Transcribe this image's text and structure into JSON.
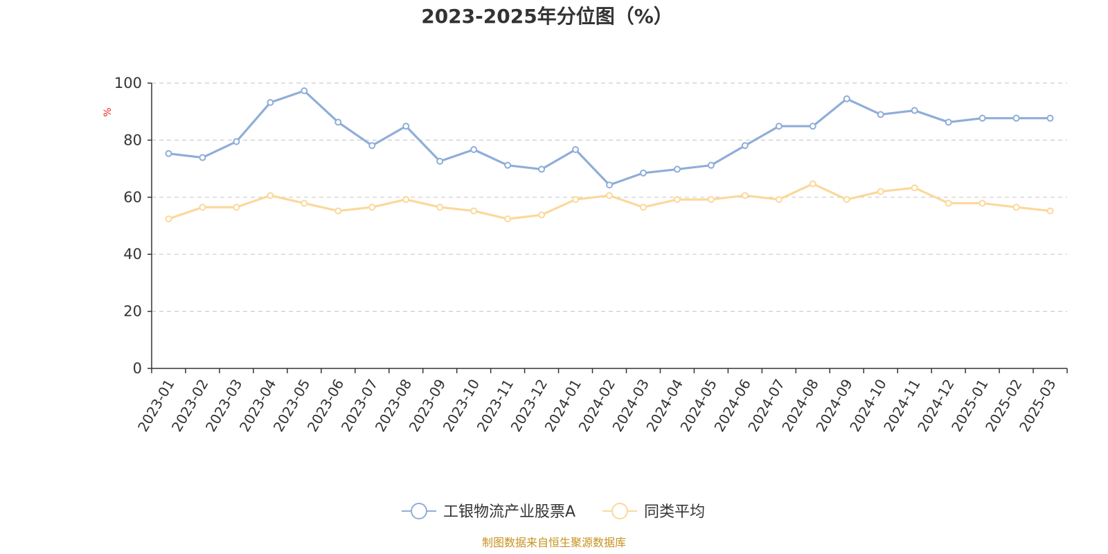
{
  "chart_data": {
    "type": "line",
    "title": "2023-2025年分位图（%）",
    "ylabel": "%",
    "xlabel": "",
    "ylim": [
      0,
      100
    ],
    "yticks": [
      0,
      20,
      40,
      60,
      80,
      100
    ],
    "grid": "horizontal-dashed",
    "legend_position": "bottom-center",
    "categories": [
      "2023-01",
      "2023-02",
      "2023-03",
      "2023-04",
      "2023-05",
      "2023-06",
      "2023-07",
      "2023-08",
      "2023-09",
      "2023-10",
      "2023-11",
      "2023-12",
      "2024-01",
      "2024-02",
      "2024-03",
      "2024-04",
      "2024-05",
      "2024-06",
      "2024-07",
      "2024-08",
      "2024-09",
      "2024-10",
      "2024-11",
      "2024-12",
      "2025-01",
      "2025-02",
      "2025-03"
    ],
    "series": [
      {
        "name": "工银物流产业股票A",
        "color": "#8fadd9",
        "values": [
          75.3,
          73.9,
          79.5,
          93.2,
          97.3,
          86.3,
          78.1,
          84.9,
          72.6,
          76.7,
          71.2,
          69.8,
          76.7,
          64.3,
          68.5,
          69.8,
          71.2,
          78.1,
          84.9,
          84.9,
          94.5,
          89.0,
          90.4,
          86.3,
          87.7,
          87.7,
          87.7
        ]
      },
      {
        "name": "同类平均",
        "color": "#fbd89a",
        "values": [
          52.4,
          56.5,
          56.5,
          60.6,
          57.9,
          55.2,
          56.5,
          59.2,
          56.5,
          55.2,
          52.4,
          53.8,
          59.2,
          60.6,
          56.5,
          59.2,
          59.2,
          60.6,
          59.2,
          64.7,
          59.2,
          62.0,
          63.3,
          57.9,
          57.9,
          56.5,
          55.2
        ]
      }
    ]
  },
  "source": "制图数据来自恒生聚源数据库",
  "colors": {
    "axis": "#333333",
    "grid": "#cccccc",
    "unit_label": "#e8251f",
    "source_text": "#c8921e"
  }
}
